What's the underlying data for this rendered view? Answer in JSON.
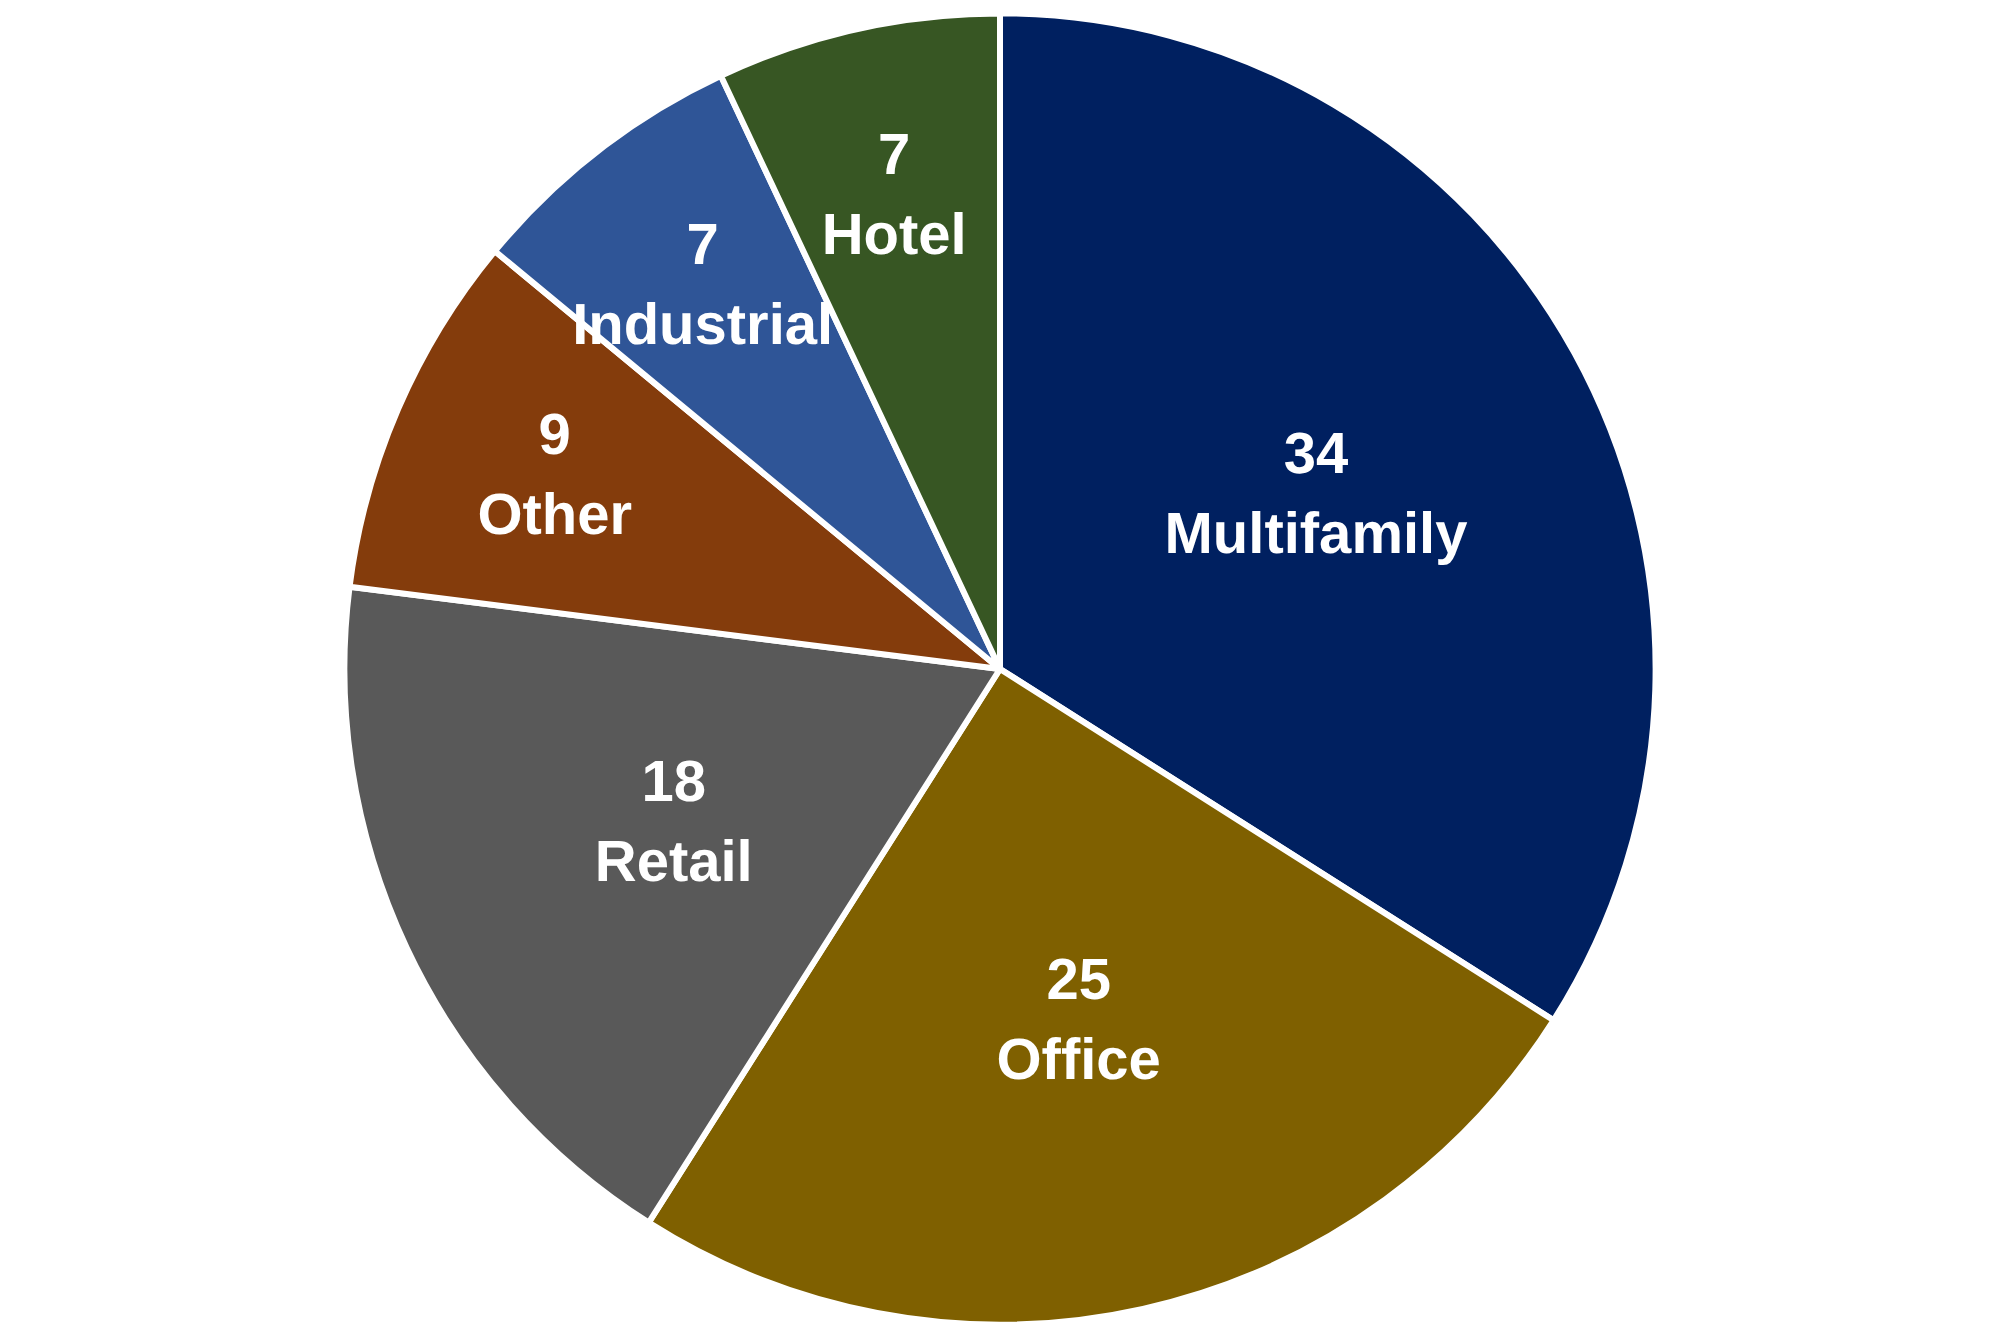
{
  "chart_data": {
    "type": "pie",
    "categories": [
      "Multifamily",
      "Office",
      "Retail",
      "Other",
      "Industrial",
      "Hotel"
    ],
    "values": [
      34,
      25,
      18,
      9,
      7,
      7
    ],
    "colors": [
      "#002060",
      "#7f6000",
      "#595959",
      "#843c0c",
      "#2f5597",
      "#375623"
    ],
    "data_labels": true,
    "legend": false
  }
}
